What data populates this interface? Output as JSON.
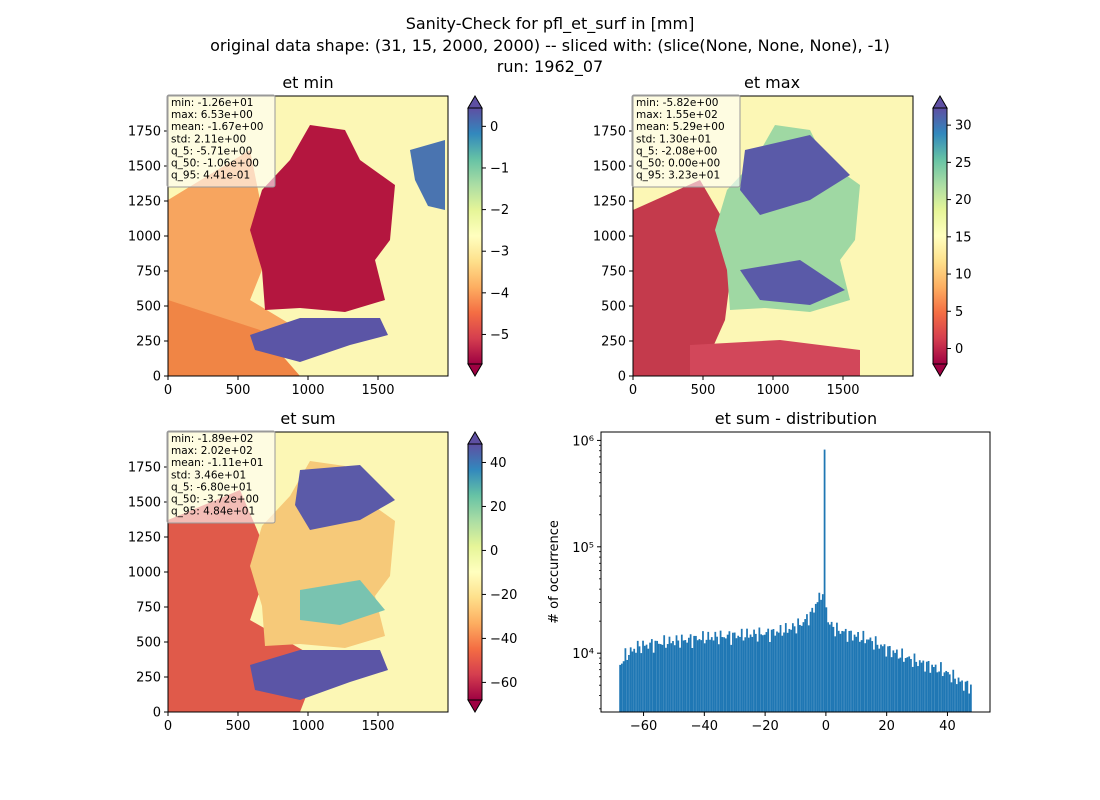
{
  "figure": {
    "suptitle": [
      "Sanity-Check for pfl_et_surf in [mm]",
      "original data shape: (31, 15, 2000, 2000) -- sliced with: (slice(None, None, None), -1)",
      "run: 1962_07"
    ]
  },
  "chart_data": [
    {
      "type": "heatmap",
      "title": "et min",
      "xlim": [
        0,
        2000
      ],
      "ylim": [
        0,
        2000
      ],
      "x_ticks": [
        "0",
        "500",
        "1000",
        "1500"
      ],
      "y_ticks": [
        "0",
        "250",
        "500",
        "750",
        "1000",
        "1250",
        "1500",
        "1750"
      ],
      "colormap": "Spectral",
      "colorbar": {
        "range": [
          -5.71,
          0.441
        ],
        "ticks": [
          "0",
          "−1",
          "−2",
          "−3",
          "−4",
          "−5"
        ],
        "extend": "both"
      },
      "stats": [
        "min: -1.26e+01",
        "max: 6.53e+00",
        "mean: -1.67e+00",
        "std: 2.11e+00",
        "q_5: -5.71e+00",
        "q_50: -1.06e+00",
        "q_95: 4.41e-01"
      ]
    },
    {
      "type": "heatmap",
      "title": "et max",
      "xlim": [
        0,
        2000
      ],
      "ylim": [
        0,
        2000
      ],
      "x_ticks": [
        "0",
        "500",
        "1000",
        "1500"
      ],
      "y_ticks": [
        "0",
        "250",
        "500",
        "750",
        "1000",
        "1250",
        "1500",
        "1750"
      ],
      "colormap": "Spectral",
      "colorbar": {
        "range": [
          -2.08,
          32.3
        ],
        "ticks": [
          "30",
          "25",
          "20",
          "15",
          "10",
          "5",
          "0"
        ],
        "extend": "both"
      },
      "stats": [
        "min: -5.82e+00",
        "max: 1.55e+02",
        "mean: 5.29e+00",
        "std: 1.30e+01",
        "q_5: -2.08e+00",
        "q_50: 0.00e+00",
        "q_95: 3.23e+01"
      ]
    },
    {
      "type": "heatmap",
      "title": "et sum",
      "xlim": [
        0,
        2000
      ],
      "ylim": [
        0,
        2000
      ],
      "x_ticks": [
        "0",
        "500",
        "1000",
        "1500"
      ],
      "y_ticks": [
        "0",
        "250",
        "500",
        "750",
        "1000",
        "1250",
        "1500",
        "1750"
      ],
      "colormap": "Spectral",
      "colorbar": {
        "range": [
          -68.0,
          48.4
        ],
        "ticks": [
          "40",
          "20",
          "0",
          "−20",
          "−40",
          "−60"
        ],
        "extend": "both"
      },
      "stats": [
        "min: -1.89e+02",
        "max: 2.02e+02",
        "mean: -1.11e+01",
        "std: 3.46e+01",
        "q_5: -6.80e+01",
        "q_50: -3.72e+00",
        "q_95: 4.84e+01"
      ]
    },
    {
      "type": "bar",
      "title": "et sum - distribution",
      "ylabel": "# of occurrence",
      "xlabel": "",
      "yscale": "log",
      "xlim": [
        -74,
        54
      ],
      "ylim": [
        2800,
        1200000
      ],
      "x_ticks": [
        "−60",
        "−40",
        "−20",
        "0",
        "20",
        "40"
      ],
      "y_ticks": [
        "10⁴",
        "10⁵",
        "10⁶"
      ],
      "bin_range": [
        -68,
        48
      ],
      "bin_count": 200,
      "color": "#1f77b4",
      "profile_points": [
        [
          -68,
          7500
        ],
        [
          -66,
          9500
        ],
        [
          -62,
          11500
        ],
        [
          -55,
          12500
        ],
        [
          -48,
          13200
        ],
        [
          -40,
          14000
        ],
        [
          -32,
          14500
        ],
        [
          -25,
          15000
        ],
        [
          -18,
          15500
        ],
        [
          -12,
          17000
        ],
        [
          -8,
          19000
        ],
        [
          -5,
          23000
        ],
        [
          -3,
          30000
        ],
        [
          -1,
          38000
        ],
        [
          0,
          35000
        ],
        [
          0.5,
          20000
        ],
        [
          3,
          17000
        ],
        [
          8,
          15000
        ],
        [
          14,
          13500
        ],
        [
          20,
          11000
        ],
        [
          26,
          9200
        ],
        [
          32,
          8000
        ],
        [
          38,
          7000
        ],
        [
          42,
          6000
        ],
        [
          45,
          5200
        ],
        [
          48,
          4800
        ]
      ],
      "peak": {
        "x": -0.3,
        "y": 820000
      }
    }
  ]
}
